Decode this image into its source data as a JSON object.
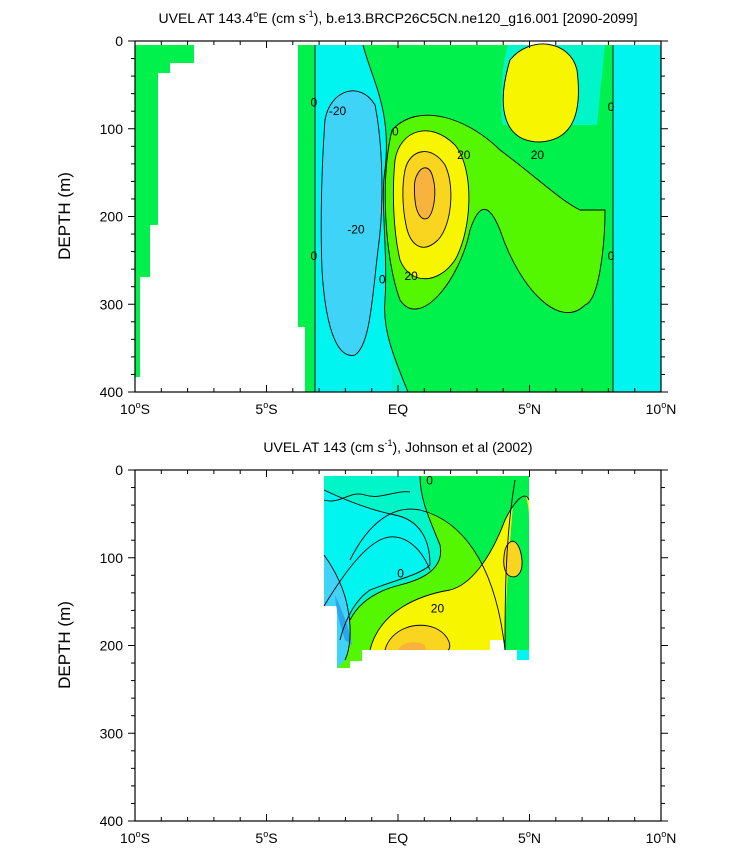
{
  "chart_data": [
    {
      "type": "filled-contour",
      "title_pre": "UVEL AT 143.4",
      "title_deg": "o",
      "title_mid": "E (cm s",
      "title_exp": "-1",
      "title_post": "), b.e13.BRCP26C5CN.ne120_g16.001 [2090-2099]",
      "ylabel": "DEPTH (m)",
      "xlim": [
        -10,
        10
      ],
      "ylim": [
        400,
        0
      ],
      "x_ticks": [
        {
          "v": -10,
          "num": "10",
          "deg": "o",
          "hemi": "S"
        },
        {
          "v": -5,
          "num": "5",
          "deg": "o",
          "hemi": "S"
        },
        {
          "v": 0,
          "num": "EQ",
          "deg": "",
          "hemi": ""
        },
        {
          "v": 5,
          "num": "5",
          "deg": "o",
          "hemi": "N"
        },
        {
          "v": 10,
          "num": "10",
          "deg": "o",
          "hemi": "N"
        }
      ],
      "y_ticks": [
        {
          "v": 0,
          "label": "0"
        },
        {
          "v": 100,
          "label": "100"
        },
        {
          "v": 200,
          "label": "200"
        },
        {
          "v": 300,
          "label": "300"
        },
        {
          "v": 400,
          "label": "400"
        }
      ],
      "contour_labels": [
        {
          "x": -3.2,
          "y": 70,
          "text": "0"
        },
        {
          "x": -2.3,
          "y": 80,
          "text": "-20"
        },
        {
          "x": -0.1,
          "y": 103,
          "text": "0"
        },
        {
          "x": 2.5,
          "y": 130,
          "text": "20"
        },
        {
          "x": 5.3,
          "y": 130,
          "text": "20"
        },
        {
          "x": 8.1,
          "y": 75,
          "text": "0"
        },
        {
          "x": -1.6,
          "y": 215,
          "text": "-20"
        },
        {
          "x": -3.2,
          "y": 245,
          "text": "0"
        },
        {
          "x": -0.6,
          "y": 272,
          "text": "0"
        },
        {
          "x": 0.5,
          "y": 268,
          "text": "20"
        },
        {
          "x": 8.1,
          "y": 245,
          "text": "0"
        }
      ]
    },
    {
      "type": "filled-contour",
      "title_pre": "UVEL AT 143 (cm s",
      "title_exp": "-1",
      "title_post": "), Johnson et al (2002)",
      "ylabel": "DEPTH (m)",
      "xlim": [
        -10,
        10
      ],
      "ylim": [
        400,
        0
      ],
      "x_ticks": [
        {
          "v": -10,
          "num": "10",
          "deg": "o",
          "hemi": "S"
        },
        {
          "v": -5,
          "num": "5",
          "deg": "o",
          "hemi": "S"
        },
        {
          "v": 0,
          "num": "EQ",
          "deg": "",
          "hemi": ""
        },
        {
          "v": 5,
          "num": "5",
          "deg": "o",
          "hemi": "N"
        },
        {
          "v": 10,
          "num": "10",
          "deg": "o",
          "hemi": "N"
        }
      ],
      "y_ticks": [
        {
          "v": 0,
          "label": "0"
        },
        {
          "v": 100,
          "label": "100"
        },
        {
          "v": 200,
          "label": "200"
        },
        {
          "v": 300,
          "label": "300"
        },
        {
          "v": 400,
          "label": "400"
        }
      ],
      "contour_labels": [
        {
          "x": 1.2,
          "y": 12,
          "text": "0"
        },
        {
          "x": 0.1,
          "y": 118,
          "text": "0"
        },
        {
          "x": 1.5,
          "y": 158,
          "text": "20"
        }
      ]
    }
  ],
  "colors": {
    "blue_dark": "#2aa6ee",
    "blue_mid": "#3fd4f7",
    "cyan": "#00f5f0",
    "teal": "#00f5c8",
    "green": "#00f14c",
    "lime": "#55f700",
    "yellow": "#f8f500",
    "gold": "#f9d51f",
    "orange": "#f8b33f"
  }
}
